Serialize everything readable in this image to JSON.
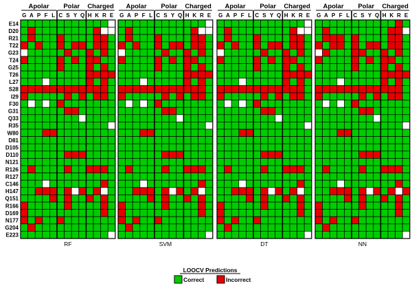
{
  "chart_data": {
    "type": "heatmap",
    "legend_title": "LOOCV Predictions",
    "legend": [
      {
        "label": "Correct",
        "color": "#00cc00"
      },
      {
        "label": "Incorrect",
        "color": "#e60000"
      }
    ],
    "empty_color": "#ffffff",
    "column_groups": [
      {
        "label": "Apolar",
        "columns": [
          "G",
          "A",
          "P",
          "F",
          "L"
        ]
      },
      {
        "label": "Polar",
        "columns": [
          "C",
          "S",
          "Y",
          "Q"
        ]
      },
      {
        "label": "Charged",
        "columns": [
          "H",
          "K",
          "R",
          "E"
        ]
      }
    ],
    "columns": [
      "G",
      "A",
      "P",
      "F",
      "L",
      "C",
      "S",
      "Y",
      "Q",
      "H",
      "K",
      "R",
      "E"
    ],
    "rows": [
      "E14",
      "D20",
      "R21",
      "T22",
      "G23",
      "T24",
      "G25",
      "T26",
      "L27",
      "S28",
      "I29",
      "F30",
      "G31",
      "Q33",
      "R35",
      "W80",
      "D81",
      "D105",
      "D110",
      "N121",
      "R126",
      "R127",
      "C146",
      "H147",
      "Q151",
      "R166",
      "D169",
      "N177",
      "G204",
      "E223"
    ],
    "cell_codes": {
      "c": "correct",
      "i": "incorrect",
      "w": "empty"
    },
    "panels": [
      {
        "name": "RF",
        "grid": [
          "ccccccccccccw",
          "cicccccccciww",
          "cicccicccciic",
          "icicciciiciic",
          "wccccciccicic",
          "icccciciciicc",
          "cccccicccicic",
          "ccccccccciiii",
          "cccwcccccicic",
          "iiiiiiiiiiiic",
          "iccccciciciic",
          "cwcwciccccccc",
          "cccccciiccccc",
          "ccccccccwcccc",
          "ccccccccccccw",
          "ccciicccccccc",
          "ccccccccccccc",
          "ccccccccccccc",
          "cccccciiicccc",
          "ccccccccccccc",
          "ciccccicciiic",
          "ccccccccccccc",
          "cccwcccccccic",
          "cciiiciwiciwc",
          "cccciciccicic",
          "iccccciccccic",
          "iccccccccccic",
          "icicciccccccc",
          "ciccccccccccc",
          "ccccccccccccw"
        ]
      },
      {
        "name": "SVM",
        "grid": [
          "ccccccccccccw",
          "cicccccccciww",
          "cicccicccciic",
          "icicciciiciic",
          "wccccciccicic",
          "icccciciciicc",
          "cccccicccicic",
          "ccccccccciiii",
          "cccwcccccicic",
          "iiiiiiiiiiiic",
          "iccccciciciic",
          "cwcwciccccccc",
          "cccccciiccccc",
          "ccccccccwcccc",
          "ccccccccccccw",
          "ccciicccccccc",
          "ccccccccccccc",
          "ccccccccccccc",
          "cccccciiicccc",
          "ccccccccccccc",
          "ciccccicciiic",
          "ccccccccccccc",
          "cccwcccccccic",
          "cciiiciwiciwc",
          "cccciciccicic",
          "iccccciccccic",
          "iccccccccccic",
          "icicciccccccc",
          "ciccccccccccc",
          "ccccccccccccw"
        ]
      },
      {
        "name": "DT",
        "grid": [
          "ccccccccccccw",
          "cicccccccciww",
          "cicccicccciic",
          "icicciciiciic",
          "wccccciccicic",
          "icccciciciicc",
          "cccccicccicic",
          "ccccccccciiii",
          "cccwcccccicic",
          "iiiiiiiiiiiic",
          "iccccciciciic",
          "cwcwciccccccc",
          "cccccciiccccc",
          "ccccccccwcccc",
          "ccccccccccccw",
          "ccciicccccccc",
          "ccccccccccccc",
          "ccccccccccccc",
          "cccccciiicccc",
          "ccccccccccccc",
          "ciccccicciiic",
          "ccccccccccccc",
          "cccwcccccccic",
          "cciiiciwiciwc",
          "cccciciccicic",
          "iccccciccccic",
          "iccccccccccic",
          "icicciccccccc",
          "ciccccccccccc",
          "ccccccccccccw"
        ]
      },
      {
        "name": "NN",
        "grid": [
          "cccccccccccic",
          "cicccccccciiw",
          "ciiicicccciic",
          "iciiciciiciic",
          "wiccciiccicic",
          "icccciciciicc",
          "cccccicccicic",
          "ccccccccciiii",
          "cccwcccccicic",
          "iiiiiiiiiiiic",
          "iccccciciciic",
          "cwcwciccccccc",
          "cccccciiccccc",
          "ccccccccwcccc",
          "ccccccccccccw",
          "ccciicccccccc",
          "ccccccccccccc",
          "ccccccccccccc",
          "cccccciiicccc",
          "ccccccccccccc",
          "ciccccicciiic",
          "ccccccccccccc",
          "cccwcccccccic",
          "cciiiciwiciwi",
          "cccciciccicic",
          "iccccciccccic",
          "iccccccccccic",
          "icicciccccccc",
          "ciccccccccccc",
          "ccccccccccccw"
        ]
      }
    ]
  }
}
